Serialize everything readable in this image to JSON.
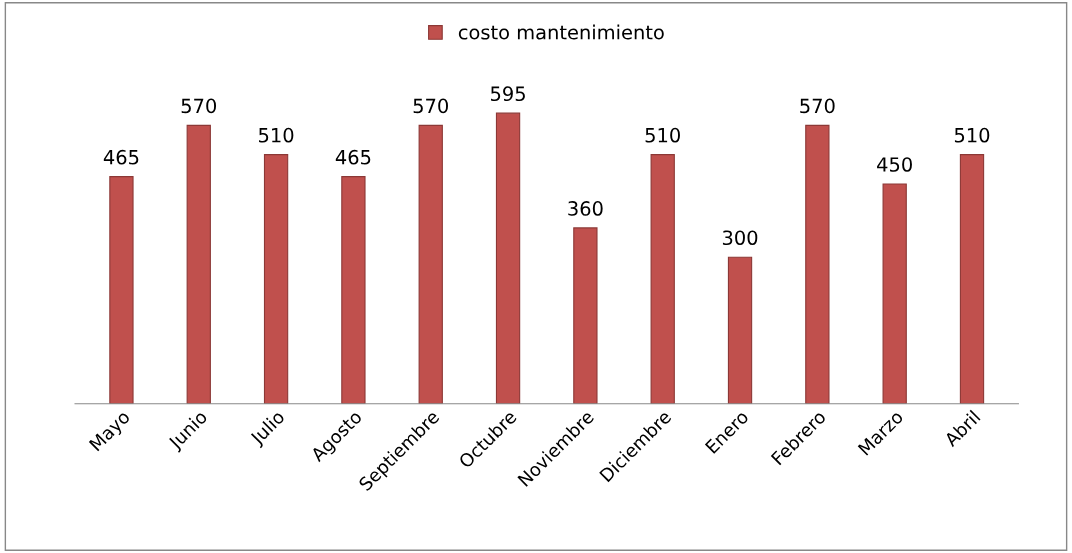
{
  "chart_data": {
    "type": "bar",
    "categories": [
      "Mayo",
      "Junio",
      "Julio",
      "Agosto",
      "Septiembre",
      "Octubre",
      "Noviembre",
      "Diciembre",
      "Enero",
      "Febrero",
      "Marzo",
      "Abril"
    ],
    "series": [
      {
        "name": "costo mantenimiento",
        "color": "#c0504d",
        "values": [
          465,
          570,
          510,
          465,
          570,
          595,
          360,
          510,
          300,
          570,
          450,
          510
        ]
      }
    ],
    "data_labels": true,
    "legend": "top",
    "grid": false
  }
}
